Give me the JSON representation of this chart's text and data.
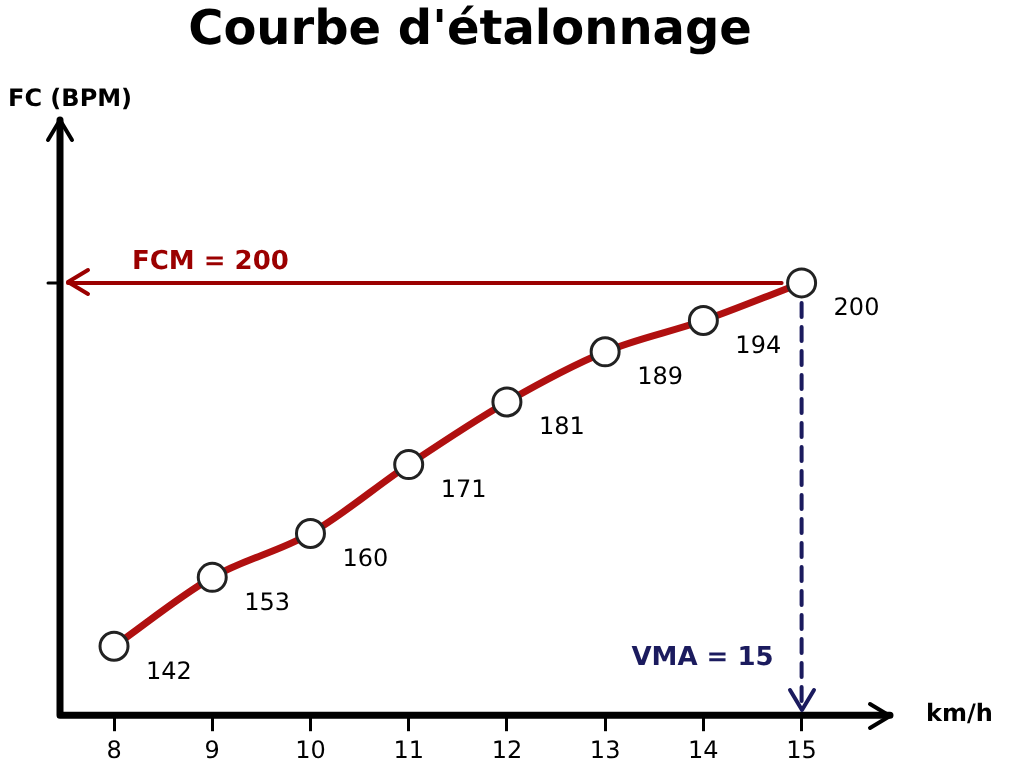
{
  "chart_data": {
    "type": "line",
    "title": "Courbe d'étalonnage",
    "xlabel": "km/h",
    "ylabel": "FC (BPM)",
    "x": [
      8,
      9,
      10,
      11,
      12,
      13,
      14,
      15
    ],
    "series": [
      {
        "color": "#b01010",
        "values": [
          142,
          153,
          160,
          171,
          181,
          189,
          194,
          200
        ]
      }
    ],
    "data_labels": true,
    "marker": "circle",
    "line_style": "solid",
    "grid": false,
    "legend": false,
    "xlim": [
      7.45,
      15.9
    ],
    "xticks": [
      8,
      9,
      10,
      11,
      12,
      13,
      14,
      15
    ],
    "ylim": [
      131,
      226
    ],
    "yticks": [
      {
        "value": 200,
        "label": null
      }
    ],
    "ref_lines": [
      {
        "axis": "y",
        "value": 200,
        "label": "FCM = 200",
        "color": "#9b0000",
        "line_style": "solid"
      },
      {
        "axis": "x",
        "value": 15,
        "label": "VMA = 15",
        "color": "#1b1b5e",
        "line_style": "dashed"
      }
    ]
  }
}
